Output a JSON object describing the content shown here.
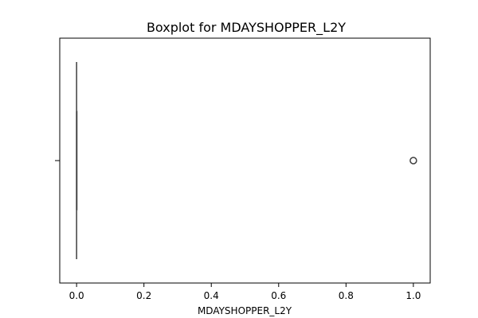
{
  "chart_data": {
    "type": "boxplot",
    "orientation": "horizontal",
    "title": "Boxplot for MDAYSHOPPER_L2Y",
    "xlabel": "MDAYSHOPPER_L2Y",
    "ylabel": "",
    "xlim": [
      -0.05,
      1.05
    ],
    "xticks": [
      0.0,
      0.2,
      0.4,
      0.6,
      0.8,
      1.0
    ],
    "xtick_labels": [
      "0.0",
      "0.2",
      "0.4",
      "0.6",
      "0.8",
      "1.0"
    ],
    "grid": false,
    "legend": false,
    "box": {
      "min": 0.0,
      "q1": 0.0,
      "median": 0.0,
      "q3": 0.0,
      "max": 0.0,
      "outliers": [
        1.0
      ]
    },
    "colors": {
      "box": "#1f77b4",
      "line": "#3f3f3f",
      "frame": "#000000"
    }
  }
}
